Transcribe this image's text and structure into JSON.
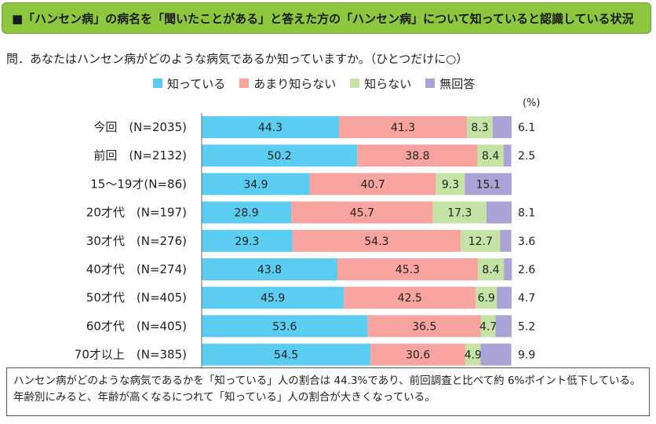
{
  "header": {
    "title": "■「ハンセン病」の病名を「聞いたことがある」と答えた方の「ハンセン病」について知っていると認識している状況"
  },
  "question": "問．あなたはハンセン病がどのような病気であるか知っていますか。（ひとつだけに○）",
  "unit": "(%)",
  "colors": {
    "know": "#5bcdf0",
    "somewhat": "#f7a39f",
    "dont": "#c6e3a6",
    "na": "#a9a3d6"
  },
  "chart_data": {
    "type": "bar",
    "orientation": "horizontal",
    "stacked": true,
    "normalized_to": 100,
    "categories": [
      "今回　(N=2035)",
      "前回　(N=2132)",
      "15～19才(N=86)",
      "20才代　(N=197)",
      "30才代　(N=276)",
      "40才代　(N=274)",
      "50才代　(N=405)",
      "60才代　(N=405)",
      "70才以上　(N=385)"
    ],
    "series": [
      {
        "name": "知っている",
        "values": [
          44.3,
          50.2,
          34.9,
          28.9,
          29.3,
          43.8,
          45.9,
          53.6,
          54.5
        ]
      },
      {
        "name": "あまり知らない",
        "values": [
          41.3,
          38.8,
          40.7,
          45.7,
          54.3,
          45.3,
          42.5,
          36.5,
          30.6
        ]
      },
      {
        "name": "知らない",
        "values": [
          8.3,
          8.4,
          9.3,
          17.3,
          12.7,
          8.4,
          6.9,
          4.7,
          4.9
        ]
      },
      {
        "name": "無回答",
        "values": [
          6.1,
          2.5,
          15.1,
          8.1,
          3.6,
          2.6,
          4.7,
          5.2,
          9.9
        ]
      }
    ],
    "na_label_outside": [
      true,
      true,
      false,
      true,
      true,
      true,
      true,
      true,
      true
    ],
    "legend_position": "top",
    "grid": false
  },
  "note": "ハンセン病がどのような病気であるかを「知っている」人の割合は 44.3%であり、前回調査と比べて約 6%ポイント低下している。年齢別にみると、年齢が高くなるにつれて「知っている」人の割合が大きくなっている。"
}
